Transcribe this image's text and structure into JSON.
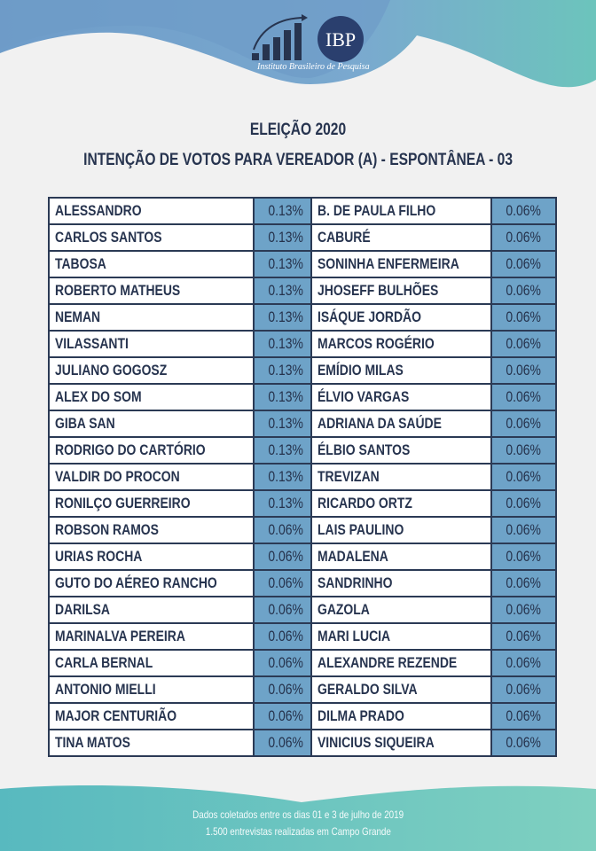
{
  "logo": {
    "abbr": "IBP",
    "name": "Instituto Brasileiro de Pesquisa"
  },
  "title": "ELEIÇÃO 2020",
  "subtitle": "INTENÇÃO DE VOTOS PARA VEREADOR (A) - ESPONTÂNEA - 03",
  "colors": {
    "navy": "#27344f",
    "value_cell": "#6ea3c8",
    "top_blue": "#6e9ec8",
    "bottom_teal": "#5fc0c0"
  },
  "left": [
    {
      "name": "ALESSANDRO",
      "pct": "0.13%"
    },
    {
      "name": "CARLOS SANTOS",
      "pct": "0.13%"
    },
    {
      "name": "TABOSA",
      "pct": "0.13%"
    },
    {
      "name": "ROBERTO MATHEUS",
      "pct": "0.13%"
    },
    {
      "name": "NEMAN",
      "pct": "0.13%"
    },
    {
      "name": "VILASSANTI",
      "pct": "0.13%"
    },
    {
      "name": "JULIANO GOGOSZ",
      "pct": "0.13%"
    },
    {
      "name": "ALEX DO SOM",
      "pct": "0.13%"
    },
    {
      "name": "GIBA SAN",
      "pct": "0.13%"
    },
    {
      "name": "RODRIGO DO CARTÓRIO",
      "pct": "0.13%"
    },
    {
      "name": "VALDIR DO PROCON",
      "pct": "0.13%"
    },
    {
      "name": "RONILÇO GUERREIRO",
      "pct": "0.13%"
    },
    {
      "name": "ROBSON RAMOS",
      "pct": "0.06%"
    },
    {
      "name": "URIAS ROCHA",
      "pct": "0.06%"
    },
    {
      "name": "GUTO DO AÉREO RANCHO",
      "pct": "0.06%"
    },
    {
      "name": "DARILSA",
      "pct": "0.06%"
    },
    {
      "name": "MARINALVA PEREIRA",
      "pct": "0.06%"
    },
    {
      "name": "CARLA BERNAL",
      "pct": "0.06%"
    },
    {
      "name": "ANTONIO MIELLI",
      "pct": "0.06%"
    },
    {
      "name": "MAJOR CENTURIÃO",
      "pct": "0.06%"
    },
    {
      "name": "TINA MATOS",
      "pct": "0.06%"
    }
  ],
  "right": [
    {
      "name": "B. DE PAULA FILHO",
      "pct": "0.06%"
    },
    {
      "name": "CABURÉ",
      "pct": "0.06%"
    },
    {
      "name": "SONINHA ENFERMEIRA",
      "pct": "0.06%"
    },
    {
      "name": "JHOSEFF BULHÕES",
      "pct": "0.06%"
    },
    {
      "name": "ISÁQUE JORDÃO",
      "pct": "0.06%"
    },
    {
      "name": "MARCOS ROGÉRIO",
      "pct": "0.06%"
    },
    {
      "name": "EMÍDIO MILAS",
      "pct": "0.06%"
    },
    {
      "name": "ÉLVIO VARGAS",
      "pct": "0.06%"
    },
    {
      "name": "ADRIANA DA SAÚDE",
      "pct": "0.06%"
    },
    {
      "name": "ÉLBIO SANTOS",
      "pct": "0.06%"
    },
    {
      "name": "TREVIZAN",
      "pct": "0.06%"
    },
    {
      "name": "RICARDO ORTZ",
      "pct": "0.06%"
    },
    {
      "name": "LAIS PAULINO",
      "pct": "0.06%"
    },
    {
      "name": "MADALENA",
      "pct": "0.06%"
    },
    {
      "name": "SANDRINHO",
      "pct": "0.06%"
    },
    {
      "name": "GAZOLA",
      "pct": "0.06%"
    },
    {
      "name": "MARI LUCIA",
      "pct": "0.06%"
    },
    {
      "name": "ALEXANDRE REZENDE",
      "pct": "0.06%"
    },
    {
      "name": "GERALDO SILVA",
      "pct": "0.06%"
    },
    {
      "name": "DILMA PRADO",
      "pct": "0.06%"
    },
    {
      "name": "VINICIUS SIQUEIRA",
      "pct": "0.06%"
    }
  ],
  "footer": {
    "line1": "Dados coletados entre os dias 01 e 3 de julho de 2019",
    "line2": "1.500 entrevistas realizadas em Campo Grande"
  }
}
